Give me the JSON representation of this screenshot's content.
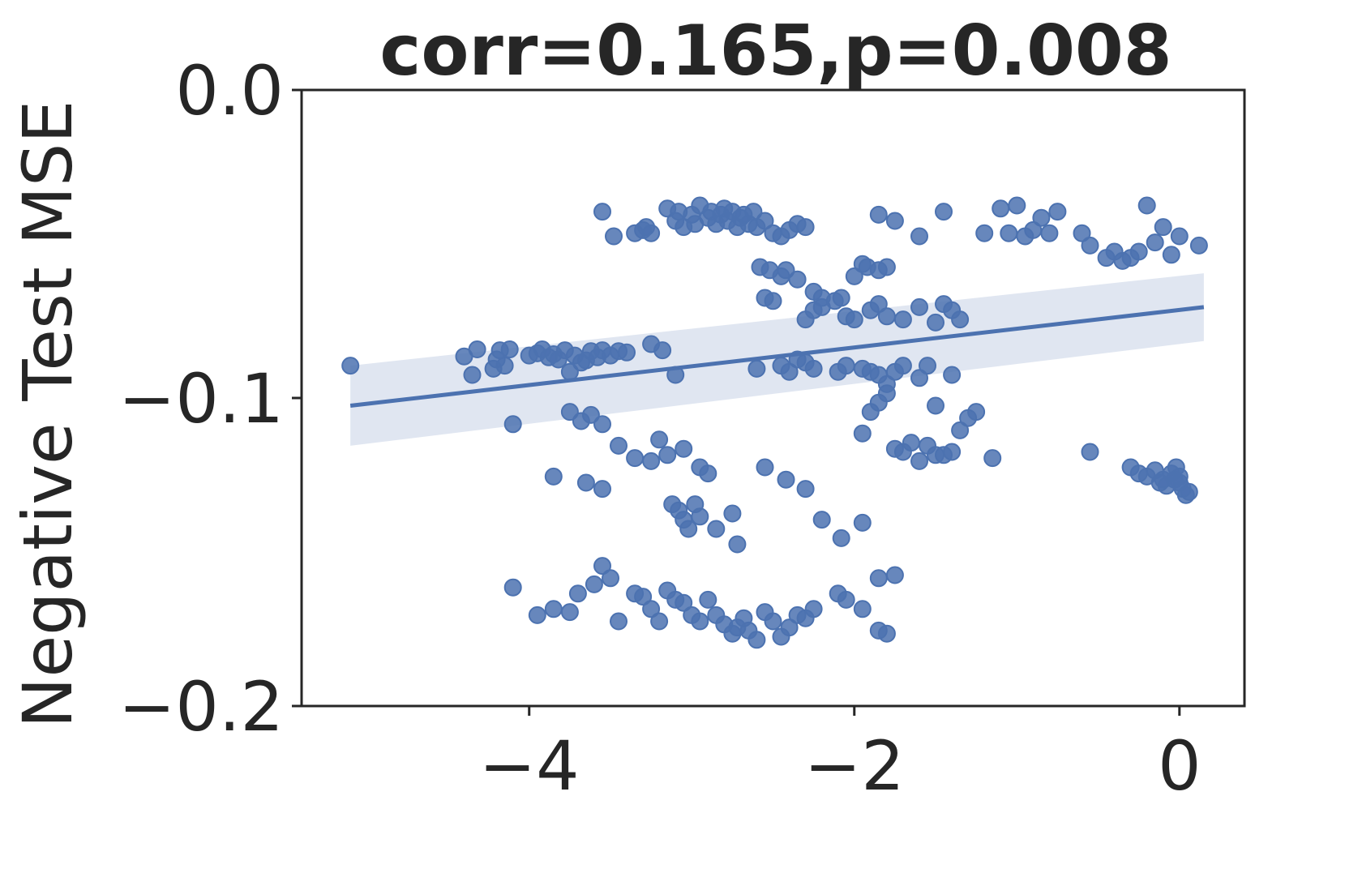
{
  "chart_data": {
    "type": "scatter",
    "title": "corr=0.165,p=0.008",
    "xlabel": "",
    "ylabel": "Negative Test MSE",
    "xlim": [
      -5.4,
      0.4
    ],
    "ylim": [
      -0.2,
      0.0
    ],
    "x_ticks": [
      {
        "value": -4,
        "label": "−4"
      },
      {
        "value": -2,
        "label": "−2"
      },
      {
        "value": 0,
        "label": "0"
      }
    ],
    "y_ticks": [
      {
        "value": 0.0,
        "label": "0.0"
      },
      {
        "value": -0.1,
        "label": "−0.1"
      },
      {
        "value": -0.2,
        "label": "−0.2"
      }
    ],
    "grid": false,
    "point_color": "#4c72b0",
    "regression": {
      "x": [
        -5.1,
        0.15
      ],
      "y": [
        -0.1025,
        -0.0705
      ],
      "ci_lower": [
        -0.1155,
        -0.0815
      ],
      "ci_upper": [
        -0.0895,
        -0.0595
      ],
      "color": "#4c72b0",
      "band_color": "#dbe2ef"
    },
    "points": [
      [
        -5.1,
        -0.0895
      ],
      [
        -4.4,
        -0.0865
      ],
      [
        -4.35,
        -0.0925
      ],
      [
        -4.32,
        -0.0842
      ],
      [
        -4.22,
        -0.0905
      ],
      [
        -4.2,
        -0.0875
      ],
      [
        -4.18,
        -0.0845
      ],
      [
        -4.15,
        -0.0895
      ],
      [
        -4.12,
        -0.0842
      ],
      [
        -4.0,
        -0.0862
      ],
      [
        -3.95,
        -0.0855
      ],
      [
        -3.92,
        -0.0842
      ],
      [
        -3.88,
        -0.0868
      ],
      [
        -3.85,
        -0.0858
      ],
      [
        -3.82,
        -0.0875
      ],
      [
        -3.78,
        -0.0845
      ],
      [
        -3.75,
        -0.0915
      ],
      [
        -3.72,
        -0.0862
      ],
      [
        -3.68,
        -0.0885
      ],
      [
        -3.65,
        -0.0878
      ],
      [
        -3.62,
        -0.0848
      ],
      [
        -3.58,
        -0.0868
      ],
      [
        -3.55,
        -0.0845
      ],
      [
        -3.5,
        -0.0862
      ],
      [
        -3.45,
        -0.0848
      ],
      [
        -3.4,
        -0.0852
      ],
      [
        -3.25,
        -0.0825
      ],
      [
        -3.18,
        -0.0845
      ],
      [
        -3.1,
        -0.0925
      ],
      [
        -4.1,
        -0.1085
      ],
      [
        -3.75,
        -0.1045
      ],
      [
        -3.68,
        -0.1075
      ],
      [
        -3.62,
        -0.1055
      ],
      [
        -3.55,
        -0.1085
      ],
      [
        -3.45,
        -0.1155
      ],
      [
        -3.35,
        -0.1195
      ],
      [
        -3.25,
        -0.1205
      ],
      [
        -3.2,
        -0.1135
      ],
      [
        -3.15,
        -0.1185
      ],
      [
        -3.05,
        -0.1165
      ],
      [
        -2.95,
        -0.1225
      ],
      [
        -2.9,
        -0.1245
      ],
      [
        -3.85,
        -0.1255
      ],
      [
        -3.65,
        -0.1275
      ],
      [
        -3.55,
        -0.1295
      ],
      [
        -3.12,
        -0.1345
      ],
      [
        -3.08,
        -0.1365
      ],
      [
        -3.05,
        -0.1395
      ],
      [
        -3.02,
        -0.1425
      ],
      [
        -2.98,
        -0.1345
      ],
      [
        -2.95,
        -0.1385
      ],
      [
        -2.85,
        -0.1425
      ],
      [
        -2.75,
        -0.1375
      ],
      [
        -2.72,
        -0.1475
      ],
      [
        -2.55,
        -0.1225
      ],
      [
        -2.42,
        -0.1265
      ],
      [
        -2.3,
        -0.1295
      ],
      [
        -2.2,
        -0.1395
      ],
      [
        -2.08,
        -0.1455
      ],
      [
        -1.95,
        -0.1405
      ],
      [
        -1.85,
        -0.1585
      ],
      [
        -1.75,
        -0.1575
      ],
      [
        -4.1,
        -0.1615
      ],
      [
        -3.95,
        -0.1705
      ],
      [
        -3.85,
        -0.1685
      ],
      [
        -3.75,
        -0.1695
      ],
      [
        -3.7,
        -0.1635
      ],
      [
        -3.6,
        -0.1605
      ],
      [
        -3.55,
        -0.1545
      ],
      [
        -3.5,
        -0.1585
      ],
      [
        -3.45,
        -0.1725
      ],
      [
        -3.35,
        -0.1635
      ],
      [
        -3.3,
        -0.1645
      ],
      [
        -3.25,
        -0.1685
      ],
      [
        -3.2,
        -0.1725
      ],
      [
        -3.15,
        -0.1625
      ],
      [
        -3.1,
        -0.1655
      ],
      [
        -3.05,
        -0.1665
      ],
      [
        -3.0,
        -0.1705
      ],
      [
        -2.95,
        -0.1725
      ],
      [
        -2.9,
        -0.1655
      ],
      [
        -2.85,
        -0.1705
      ],
      [
        -2.8,
        -0.1735
      ],
      [
        -2.75,
        -0.1765
      ],
      [
        -2.72,
        -0.1745
      ],
      [
        -2.68,
        -0.1715
      ],
      [
        -2.65,
        -0.1755
      ],
      [
        -2.6,
        -0.1785
      ],
      [
        -2.55,
        -0.1695
      ],
      [
        -2.5,
        -0.1725
      ],
      [
        -2.45,
        -0.1775
      ],
      [
        -2.4,
        -0.1745
      ],
      [
        -2.35,
        -0.1705
      ],
      [
        -2.3,
        -0.1715
      ],
      [
        -2.25,
        -0.1685
      ],
      [
        -2.1,
        -0.1635
      ],
      [
        -2.05,
        -0.1655
      ],
      [
        -1.95,
        -0.1685
      ],
      [
        -1.85,
        -0.1755
      ],
      [
        -1.8,
        -0.1765
      ],
      [
        -3.55,
        -0.0395
      ],
      [
        -3.48,
        -0.0475
      ],
      [
        -3.35,
        -0.0465
      ],
      [
        -3.3,
        -0.0455
      ],
      [
        -3.28,
        -0.0445
      ],
      [
        -3.25,
        -0.0465
      ],
      [
        -3.15,
        -0.0385
      ],
      [
        -3.1,
        -0.0425
      ],
      [
        -3.08,
        -0.0395
      ],
      [
        -3.05,
        -0.0445
      ],
      [
        -3.0,
        -0.0405
      ],
      [
        -2.98,
        -0.0435
      ],
      [
        -2.95,
        -0.0375
      ],
      [
        -2.9,
        -0.0415
      ],
      [
        -2.88,
        -0.0395
      ],
      [
        -2.85,
        -0.0435
      ],
      [
        -2.82,
        -0.0405
      ],
      [
        -2.8,
        -0.0385
      ],
      [
        -2.78,
        -0.0425
      ],
      [
        -2.75,
        -0.0395
      ],
      [
        -2.72,
        -0.0445
      ],
      [
        -2.7,
        -0.0415
      ],
      [
        -2.68,
        -0.0405
      ],
      [
        -2.65,
        -0.0435
      ],
      [
        -2.62,
        -0.0395
      ],
      [
        -2.6,
        -0.0445
      ],
      [
        -2.55,
        -0.0425
      ],
      [
        -2.5,
        -0.0465
      ],
      [
        -2.45,
        -0.0475
      ],
      [
        -2.4,
        -0.0455
      ],
      [
        -2.35,
        -0.0435
      ],
      [
        -2.3,
        -0.0445
      ],
      [
        -2.58,
        -0.0575
      ],
      [
        -2.52,
        -0.0585
      ],
      [
        -2.45,
        -0.0605
      ],
      [
        -2.42,
        -0.0585
      ],
      [
        -2.35,
        -0.0615
      ],
      [
        -2.25,
        -0.0655
      ],
      [
        -2.2,
        -0.0675
      ],
      [
        -2.12,
        -0.0685
      ],
      [
        -2.08,
        -0.0675
      ],
      [
        -2.0,
        -0.0605
      ],
      [
        -1.95,
        -0.0565
      ],
      [
        -1.92,
        -0.0575
      ],
      [
        -1.85,
        -0.0585
      ],
      [
        -1.8,
        -0.0575
      ],
      [
        -2.55,
        -0.0675
      ],
      [
        -2.5,
        -0.0685
      ],
      [
        -2.3,
        -0.0745
      ],
      [
        -2.25,
        -0.0715
      ],
      [
        -2.2,
        -0.0705
      ],
      [
        -2.05,
        -0.0735
      ],
      [
        -2.0,
        -0.0745
      ],
      [
        -1.9,
        -0.0715
      ],
      [
        -1.85,
        -0.0695
      ],
      [
        -1.8,
        -0.0735
      ],
      [
        -1.7,
        -0.0745
      ],
      [
        -1.6,
        -0.0705
      ],
      [
        -1.5,
        -0.0755
      ],
      [
        -1.45,
        -0.0695
      ],
      [
        -1.4,
        -0.0715
      ],
      [
        -1.35,
        -0.0745
      ],
      [
        -1.85,
        -0.0405
      ],
      [
        -1.75,
        -0.0425
      ],
      [
        -1.6,
        -0.0475
      ],
      [
        -1.45,
        -0.0395
      ],
      [
        -1.2,
        -0.0465
      ],
      [
        -1.1,
        -0.0385
      ],
      [
        -1.05,
        -0.0465
      ],
      [
        -1.0,
        -0.0375
      ],
      [
        -0.95,
        -0.0475
      ],
      [
        -0.9,
        -0.0455
      ],
      [
        -0.85,
        -0.0415
      ],
      [
        -0.8,
        -0.0465
      ],
      [
        -0.75,
        -0.0395
      ],
      [
        -0.6,
        -0.0465
      ],
      [
        -0.55,
        -0.0505
      ],
      [
        -0.45,
        -0.0545
      ],
      [
        -0.4,
        -0.0525
      ],
      [
        -0.35,
        -0.0555
      ],
      [
        -0.3,
        -0.0545
      ],
      [
        -0.25,
        -0.0525
      ],
      [
        -0.2,
        -0.0375
      ],
      [
        -0.15,
        -0.0495
      ],
      [
        -0.1,
        -0.0445
      ],
      [
        -0.05,
        -0.0535
      ],
      [
        0.0,
        -0.0475
      ],
      [
        0.12,
        -0.0505
      ],
      [
        -2.6,
        -0.0905
      ],
      [
        -2.45,
        -0.0895
      ],
      [
        -2.4,
        -0.0915
      ],
      [
        -2.35,
        -0.0875
      ],
      [
        -2.3,
        -0.0885
      ],
      [
        -2.25,
        -0.0905
      ],
      [
        -2.1,
        -0.0915
      ],
      [
        -2.05,
        -0.0895
      ],
      [
        -1.95,
        -0.0905
      ],
      [
        -1.9,
        -0.0915
      ],
      [
        -1.85,
        -0.0925
      ],
      [
        -1.8,
        -0.0955
      ],
      [
        -1.75,
        -0.0915
      ],
      [
        -1.7,
        -0.0895
      ],
      [
        -1.6,
        -0.0935
      ],
      [
        -1.55,
        -0.0895
      ],
      [
        -1.4,
        -0.0925
      ],
      [
        -1.95,
        -0.1115
      ],
      [
        -1.9,
        -0.1045
      ],
      [
        -1.85,
        -0.1015
      ],
      [
        -1.8,
        -0.0985
      ],
      [
        -1.75,
        -0.1165
      ],
      [
        -1.7,
        -0.1175
      ],
      [
        -1.65,
        -0.1145
      ],
      [
        -1.6,
        -0.1205
      ],
      [
        -1.55,
        -0.1155
      ],
      [
        -1.5,
        -0.1185
      ],
      [
        -1.45,
        -0.1185
      ],
      [
        -1.4,
        -0.1175
      ],
      [
        -1.35,
        -0.1105
      ],
      [
        -1.3,
        -0.1065
      ],
      [
        -1.25,
        -0.1045
      ],
      [
        -1.5,
        -0.1025
      ],
      [
        -1.15,
        -0.1195
      ],
      [
        -0.55,
        -0.1175
      ],
      [
        -0.3,
        -0.1225
      ],
      [
        -0.25,
        -0.1245
      ],
      [
        -0.2,
        -0.1255
      ],
      [
        -0.15,
        -0.1235
      ],
      [
        -0.1,
        -0.1265
      ],
      [
        -0.08,
        -0.1285
      ],
      [
        -0.05,
        -0.1245
      ],
      [
        -0.03,
        -0.1265
      ],
      [
        0.0,
        -0.1275
      ],
      [
        0.02,
        -0.1295
      ],
      [
        0.04,
        -0.1315
      ],
      [
        0.06,
        -0.1305
      ],
      [
        -0.12,
        -0.1275
      ],
      [
        -0.02,
        -0.1225
      ],
      [
        0.0,
        -0.1255
      ]
    ]
  }
}
